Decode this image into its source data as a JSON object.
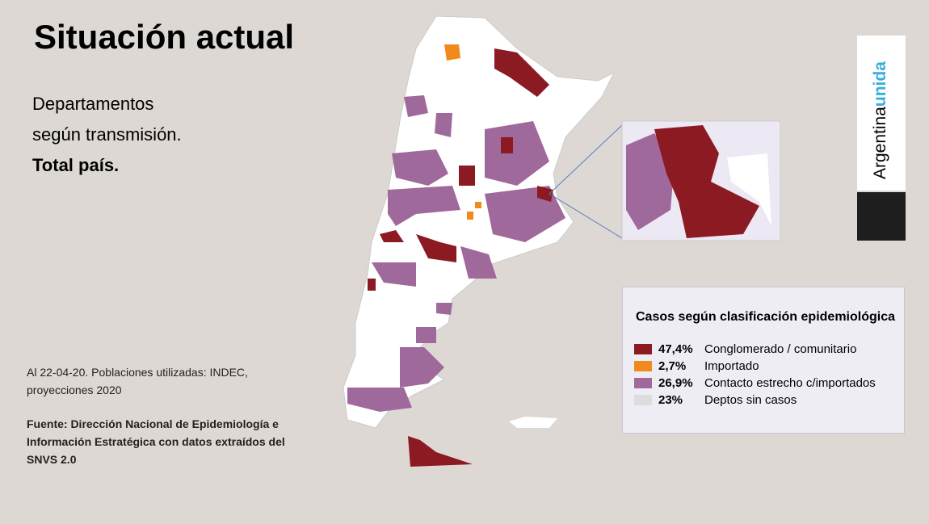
{
  "header": {
    "title": "Situación actual",
    "subtitle": [
      "Departamentos",
      "según transmisión.",
      "Total país."
    ]
  },
  "note": "Al 22-04-20. Poblaciones utilizadas: INDEC, proyecciones 2020",
  "source": "Fuente: Dirección Nacional de Epidemiología e Información Estratégica con datos extraídos del SNVS 2.0",
  "brand": {
    "word1": "Argentina",
    "word2": "unida"
  },
  "legend": {
    "title": "Casos según clasificación epidemiológica",
    "items": [
      {
        "share": "47,4%",
        "name": "Conglomerado / comunitario",
        "color": "#8b1a22"
      },
      {
        "share": "2,7%",
        "name": "Importado",
        "color": "#f08a1c"
      },
      {
        "share": "26,9%",
        "name": "Contacto estrecho c/importados",
        "color": "#a0699b"
      },
      {
        "share": "23%",
        "name": "Deptos sin casos",
        "color": "#dcdcdc"
      }
    ]
  }
}
